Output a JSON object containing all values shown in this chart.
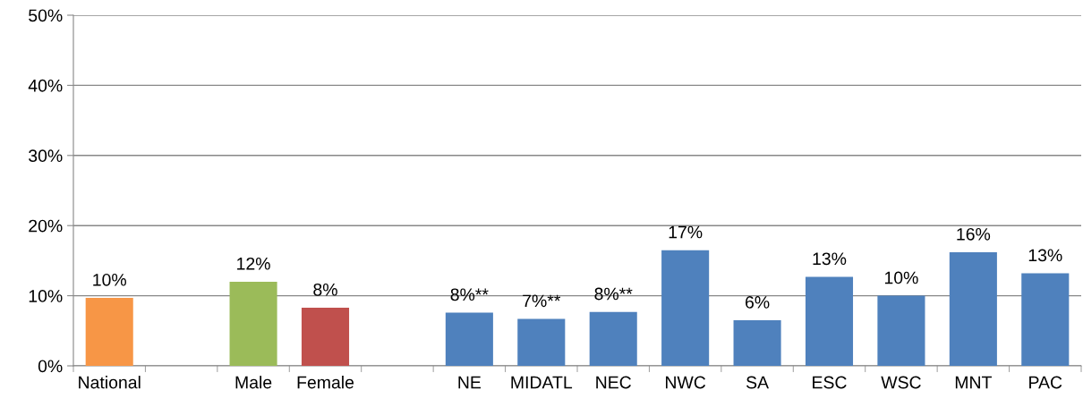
{
  "chart_data": {
    "type": "bar",
    "categories": [
      "National",
      null,
      "Male",
      "Female",
      null,
      "NE",
      "MIDATL",
      "NEC",
      "NWC",
      "SA",
      "ESC",
      "WSC",
      "MNT",
      "PAC"
    ],
    "values": [
      9.7,
      null,
      12.0,
      8.3,
      null,
      7.6,
      6.7,
      7.7,
      16.5,
      6.5,
      12.7,
      10.0,
      16.2,
      13.2
    ],
    "colors": [
      "#f79646",
      null,
      "#9bbb59",
      "#c0504d",
      null,
      "#4f81bd",
      "#4f81bd",
      "#4f81bd",
      "#4f81bd",
      "#4f81bd",
      "#4f81bd",
      "#4f81bd",
      "#4f81bd",
      "#4f81bd"
    ],
    "value_labels": [
      "10%",
      null,
      "12%",
      "8%",
      null,
      "8%**",
      "7%**",
      "8%**",
      "17%",
      "6%",
      "13%",
      "10%",
      "16%",
      "13%"
    ],
    "ylim": [
      0,
      50
    ],
    "yticks": [
      {
        "value": 0,
        "label": "0%"
      },
      {
        "value": 10,
        "label": "10%"
      },
      {
        "value": 20,
        "label": "20%"
      },
      {
        "value": 30,
        "label": "30%"
      },
      {
        "value": 40,
        "label": "40%"
      },
      {
        "value": 50,
        "label": "50%"
      }
    ],
    "grid": "y",
    "legend": false
  }
}
